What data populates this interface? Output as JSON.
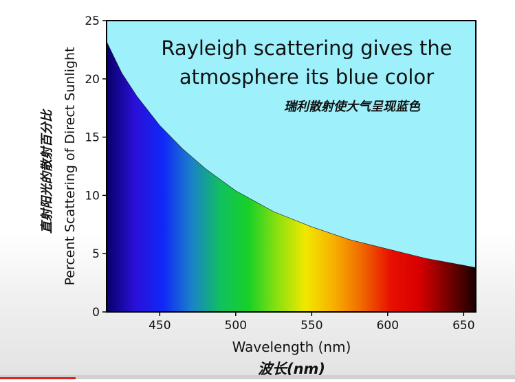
{
  "chart_data": {
    "type": "area",
    "title": "Rayleigh scattering gives the atmosphere its blue color",
    "title_line1": "Rayleigh scattering gives the",
    "title_line2": "atmosphere its blue color",
    "subtitle_cn": "瑞利散射使大气呈现蓝色",
    "xlabel": "Wavelength (nm)",
    "xlabel_cn": "波长(nm)",
    "ylabel": "Percent Scattering of Direct Sunlight",
    "ylabel_cn": "直射阳光的散射百分比",
    "xlim": [
      415,
      658
    ],
    "ylim": [
      0,
      25
    ],
    "xticks": [
      450,
      500,
      550,
      600,
      650
    ],
    "yticks": [
      0,
      5,
      10,
      15,
      20,
      25
    ],
    "series": [
      {
        "x": [
          415,
          425,
          435,
          450,
          465,
          480,
          500,
          525,
          550,
          575,
          600,
          625,
          650,
          658
        ],
        "y": [
          23.2,
          20.5,
          18.5,
          16.0,
          14.0,
          12.3,
          10.4,
          8.6,
          7.3,
          6.2,
          5.4,
          4.6,
          4.0,
          3.8
        ]
      }
    ],
    "grid": false,
    "colors": {
      "sky_fill": "#9ef0fb",
      "spectrum": [
        "#080068",
        "#2a10d8",
        "#1028f8",
        "#1a82c8",
        "#10c060",
        "#18d028",
        "#8ae010",
        "#f0e800",
        "#f8b000",
        "#f06800",
        "#e81000",
        "#d80000",
        "#7a0000",
        "#1a0000"
      ]
    }
  }
}
